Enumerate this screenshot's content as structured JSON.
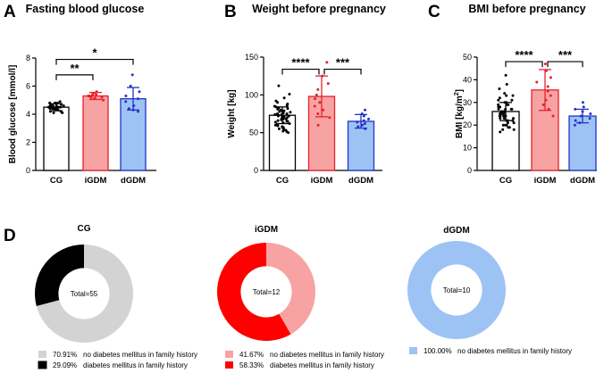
{
  "panel_labels": {
    "a": "A",
    "b": "B",
    "c": "C",
    "d": "D"
  },
  "colors": {
    "cg": "#ffffff",
    "igdm": "#f7a3a3",
    "dgdm": "#9dc3f5",
    "cg_edge": "#000000",
    "igdm_edge": "#e8202a",
    "dgdm_edge": "#2432c8"
  },
  "chart_data": [
    {
      "id": "A",
      "type": "bar",
      "title": "Fasting blood glucose",
      "ylabel": "Blood glucose [mmol/l]",
      "ylabel_html": "Blood glucose [mmol/l]",
      "ylim": [
        0,
        8
      ],
      "yticks": [
        0,
        2,
        4,
        6,
        8
      ],
      "categories": [
        "CG",
        "iGDM",
        "dGDM"
      ],
      "values": [
        4.5,
        5.3,
        5.1
      ],
      "errors": [
        0.25,
        0.25,
        0.8
      ],
      "points": [
        [
          4.9,
          4.8,
          4.8,
          4.7,
          4.7,
          4.7,
          4.6,
          4.6,
          4.6,
          4.5,
          4.5,
          4.5,
          4.5,
          4.4,
          4.4,
          4.4,
          4.3,
          4.3,
          4.3,
          4.2,
          4.2,
          4.1,
          4.1,
          4.6,
          4.8,
          4.4,
          4.5
        ],
        [
          5.6,
          5.5,
          5.4,
          5.4,
          5.3,
          5.3,
          5.2,
          5.2,
          5.1,
          5.0
        ],
        [
          6.8,
          6.0,
          5.6,
          5.3,
          5.1,
          4.9,
          4.6,
          4.4,
          4.3,
          4.2
        ]
      ],
      "brackets": [
        {
          "from": 0,
          "to": 1,
          "level": 6.8,
          "label": "**"
        },
        {
          "from": 0,
          "to": 2,
          "level": 7.9,
          "label": "*"
        }
      ]
    },
    {
      "id": "B",
      "type": "bar",
      "title": "Weight before pregnancy",
      "ylabel": "Weight [kg]",
      "ylim": [
        0,
        150
      ],
      "yticks": [
        0,
        50,
        100,
        150
      ],
      "categories": [
        "CG",
        "iGDM",
        "dGDM"
      ],
      "values": [
        73,
        98,
        65
      ],
      "errors": [
        11,
        27,
        9
      ],
      "points": [
        [
          112,
          101,
          96,
          92,
          90,
          88,
          86,
          85,
          84,
          83,
          82,
          81,
          80,
          79,
          78,
          78,
          77,
          76,
          75,
          75,
          74,
          74,
          73,
          73,
          72,
          72,
          71,
          70,
          70,
          69,
          68,
          68,
          67,
          66,
          65,
          65,
          64,
          63,
          62,
          61,
          60,
          59,
          58,
          57,
          56,
          55,
          54,
          53,
          52,
          51,
          50
        ],
        [
          143,
          125,
          115,
          107,
          100,
          95,
          90,
          85,
          80,
          75,
          70,
          60
        ],
        [
          80,
          75,
          72,
          68,
          66,
          64,
          62,
          60,
          58,
          55
        ]
      ],
      "brackets": [
        {
          "from": 0,
          "to": 1,
          "level": 134,
          "label": "****"
        },
        {
          "from": 1,
          "to": 2,
          "level": 134,
          "label": "***"
        }
      ]
    },
    {
      "id": "C",
      "type": "bar",
      "title": "BMI before pregnancy",
      "ylabel": "BMI [kg/m2]",
      "ylabel_main": "BMI [kg/m",
      "ylabel_sup": "2",
      "ylabel_end": "]",
      "ylim": [
        0,
        50
      ],
      "yticks": [
        0,
        10,
        20,
        30,
        40,
        50
      ],
      "categories": [
        "CG",
        "iGDM",
        "dGDM"
      ],
      "values": [
        26,
        35.5,
        24
      ],
      "errors": [
        4,
        9,
        3
      ],
      "points": [
        [
          42,
          38,
          36,
          34,
          33,
          32,
          31,
          31,
          30,
          30,
          29,
          29,
          28,
          28,
          28,
          27,
          27,
          27,
          26,
          26,
          26,
          26,
          25,
          25,
          25,
          25,
          24,
          24,
          24,
          23,
          23,
          23,
          22,
          22,
          21,
          21,
          20,
          20,
          19,
          19,
          18,
          18,
          17,
          33,
          29,
          27,
          24,
          22,
          20
        ],
        [
          47,
          44,
          41,
          39,
          37,
          35,
          33,
          31,
          29,
          27,
          24
        ],
        [
          30,
          28,
          27,
          26,
          25,
          24,
          23,
          22,
          21,
          20
        ]
      ],
      "brackets": [
        {
          "from": 0,
          "to": 1,
          "level": 48,
          "label": "****"
        },
        {
          "from": 1,
          "to": 2,
          "level": 48,
          "label": "***"
        }
      ]
    },
    {
      "id": "D1",
      "type": "pie",
      "title": "CG",
      "center_label": "Total=55",
      "slices": [
        {
          "label": "no diabetes mellitus in family history",
          "percent": 70.91,
          "percent_text": "70.91%",
          "color": "#d3d3d3"
        },
        {
          "label": "diabetes mellitus in family history",
          "percent": 29.09,
          "percent_text": "29.09%",
          "color": "#000000"
        }
      ]
    },
    {
      "id": "D2",
      "type": "pie",
      "title": "iGDM",
      "center_label": "Total=12",
      "slices": [
        {
          "label": "no diabetes mellitus in family history",
          "percent": 41.67,
          "percent_text": "41.67%",
          "color": "#f7a3a3"
        },
        {
          "label": "diabetes mellitus in family history",
          "percent": 58.33,
          "percent_text": "58.33%",
          "color": "#ff0000"
        }
      ]
    },
    {
      "id": "D3",
      "type": "pie",
      "title": "dGDM",
      "center_label": "Total=10",
      "slices": [
        {
          "label": "no diabetes mellitus in family history",
          "percent": 100.0,
          "percent_text": "100.00%",
          "color": "#9dc3f5"
        }
      ]
    }
  ]
}
